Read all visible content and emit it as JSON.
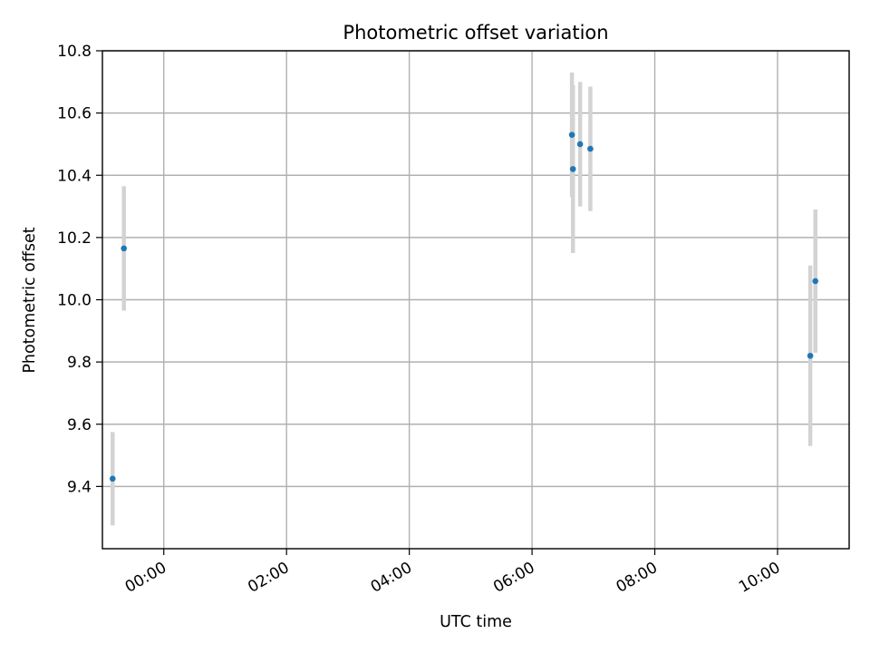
{
  "chart_data": {
    "type": "scatter",
    "title": "Photometric offset variation",
    "xlabel": "UTC time",
    "ylabel": "Photometric offset",
    "x_axis": {
      "kind": "time",
      "range": [
        "23:00",
        "11:10"
      ],
      "ticks": [
        "00:00",
        "02:00",
        "04:00",
        "06:00",
        "08:00",
        "10:00"
      ]
    },
    "y_axis": {
      "range": [
        9.2,
        10.8
      ],
      "ticks": [
        "9.4",
        "9.6",
        "9.8",
        "10.0",
        "10.2",
        "10.4",
        "10.6",
        "10.8"
      ]
    },
    "grid": true,
    "series": [
      {
        "marker_color": "#1f77b4",
        "errorbar_color": "#d3d3d3",
        "points": [
          {
            "t": "23:10",
            "y": 9.425,
            "err": 0.15
          },
          {
            "t": "23:21",
            "y": 10.165,
            "err": 0.2
          },
          {
            "t": "06:39",
            "y": 10.53,
            "err": 0.2
          },
          {
            "t": "06:40",
            "y": 10.42,
            "err": 0.27
          },
          {
            "t": "06:47",
            "y": 10.5,
            "err": 0.2
          },
          {
            "t": "06:57",
            "y": 10.485,
            "err": 0.2
          },
          {
            "t": "10:32",
            "y": 9.82,
            "err": 0.29
          },
          {
            "t": "10:37",
            "y": 10.06,
            "err": 0.23
          }
        ]
      }
    ]
  }
}
